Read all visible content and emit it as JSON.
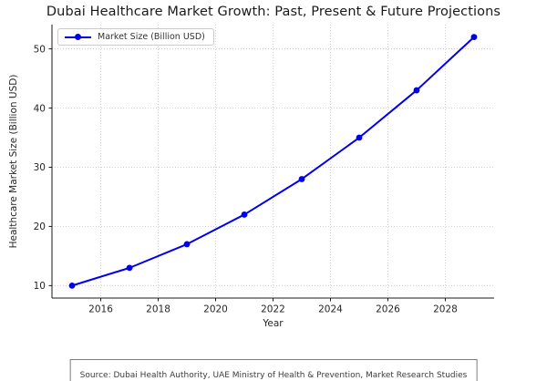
{
  "chart_data": {
    "type": "line",
    "title": "Dubai Healthcare Market Growth: Past, Present & Future Projections",
    "xlabel": "Year",
    "ylabel": "Healthcare Market Size (Billion USD)",
    "series": [
      {
        "name": "Market Size (Billion USD)",
        "color": "#0000ee",
        "marker": "circle",
        "x": [
          2015,
          2017,
          2019,
          2021,
          2023,
          2025,
          2027,
          2029
        ],
        "y": [
          10,
          13,
          17,
          22,
          28,
          35,
          43,
          52
        ]
      }
    ],
    "xlim": [
      2014.3,
      2029.7
    ],
    "ylim": [
      7.9,
      54.1
    ],
    "xticks": [
      2016,
      2018,
      2020,
      2022,
      2024,
      2026,
      2028
    ],
    "yticks": [
      10,
      20,
      30,
      40,
      50
    ],
    "grid": true,
    "grid_style": "dotted",
    "legend_position": "upper-left"
  },
  "legend": {
    "label": "Market Size (Billion USD)"
  },
  "footer": {
    "source_note": "Source: Dubai Health Authority, UAE Ministry of Health & Prevention, Market Research Studies"
  },
  "colors": {
    "line": "#0000ee",
    "grid": "#cccccc",
    "spine": "#1a1a1a",
    "tick_text": "#262626",
    "legend_border": "#cccccc",
    "source_border": "#7d7d7d"
  }
}
